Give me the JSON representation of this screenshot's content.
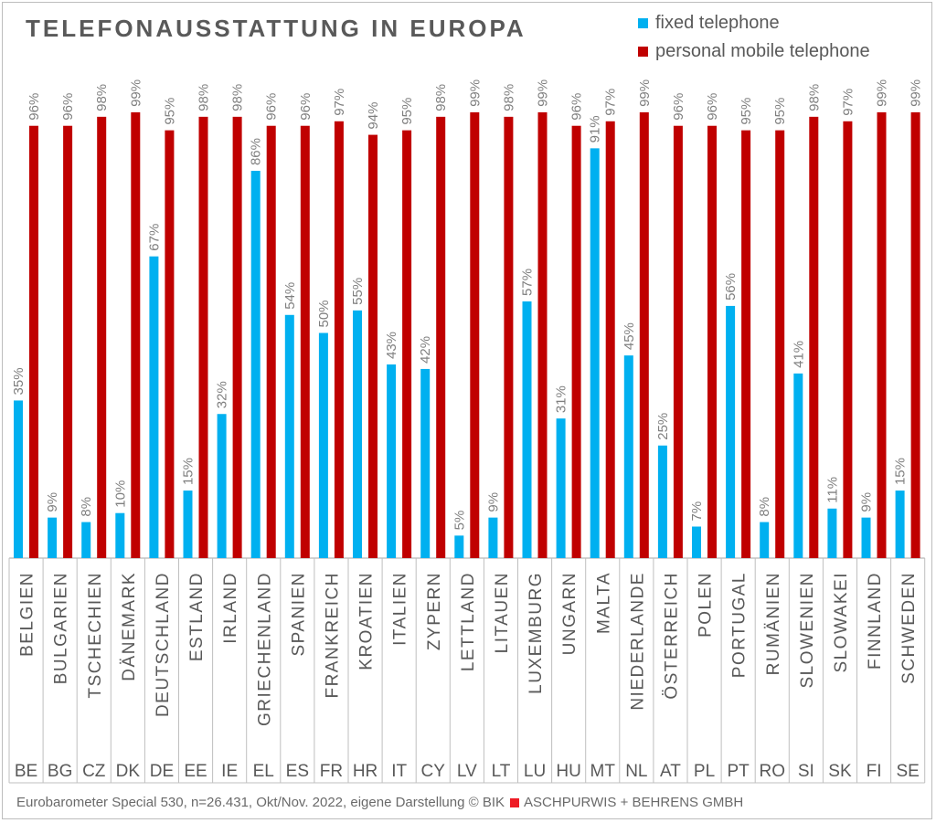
{
  "chart_data": {
    "type": "bar",
    "title": "TELEFONAUSSTATTUNG IN EUROPA",
    "ylim": [
      0,
      100
    ],
    "grid": false,
    "legend_position": "top-right",
    "categories": [
      "BELGIEN",
      "BULGARIEN",
      "TSCHECHIEN",
      "DÄNEMARK",
      "DEUTSCHLAND",
      "ESTLAND",
      "IRLAND",
      "GRIECHENLAND",
      "SPANIEN",
      "FRANKREICH",
      "KROATIEN",
      "ITALIEN",
      "ZYPERN",
      "LETTLAND",
      "LITAUEN",
      "LUXEMBURG",
      "UNGARN",
      "MALTA",
      "NIEDERLANDE",
      "ÖSTERREICH",
      "POLEN",
      "PORTUGAL",
      "RUMÄNIEN",
      "SLOWENIEN",
      "SLOWAKEI",
      "FINNLAND",
      "SCHWEDEN"
    ],
    "codes": [
      "BE",
      "BG",
      "CZ",
      "DK",
      "DE",
      "EE",
      "IE",
      "EL",
      "ES",
      "FR",
      "HR",
      "IT",
      "CY",
      "LV",
      "LT",
      "LU",
      "HU",
      "MT",
      "NL",
      "AT",
      "PL",
      "PT",
      "RO",
      "SI",
      "SK",
      "FI",
      "SE"
    ],
    "series": [
      {
        "name": "fixed telephone",
        "color": "#00b0f0",
        "values": [
          35,
          9,
          8,
          10,
          67,
          15,
          32,
          86,
          54,
          50,
          55,
          43,
          42,
          5,
          9,
          57,
          31,
          91,
          45,
          25,
          7,
          56,
          8,
          41,
          11,
          9,
          15
        ]
      },
      {
        "name": "personal mobile telephone",
        "color": "#c00000",
        "values": [
          96,
          96,
          98,
          99,
          95,
          98,
          98,
          96,
          96,
          97,
          94,
          95,
          98,
          99,
          98,
          99,
          96,
          97,
          99,
          96,
          96,
          95,
          95,
          98,
          97,
          99,
          99
        ]
      }
    ],
    "value_suffix": "%"
  },
  "footer": {
    "source": "Eurobarometer Special 530, n=26.431, Okt/Nov. 2022, eigene Darstellung © BIK",
    "company": "ASCHPURWIS + BEHRENS GMBH"
  }
}
